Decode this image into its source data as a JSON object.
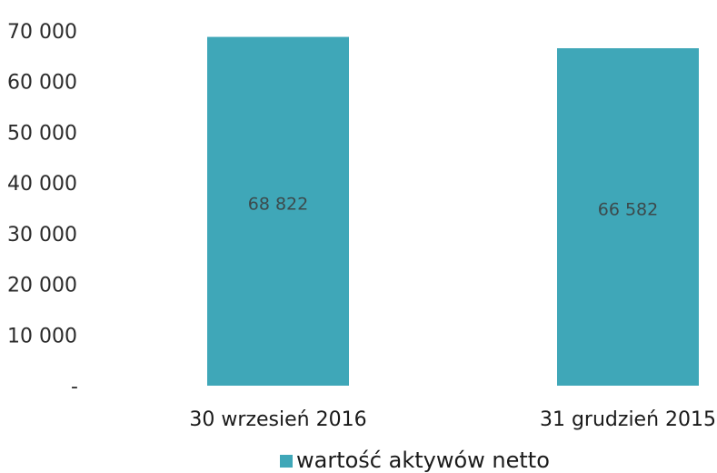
{
  "chart_data": {
    "type": "bar",
    "categories": [
      "30 wrzesień 2016",
      "31 grudzień 2015"
    ],
    "series": [
      {
        "name": "wartość aktywów netto",
        "values": [
          68822,
          66582
        ],
        "value_labels": [
          "68 822",
          "66 582"
        ]
      }
    ],
    "ylim": [
      0,
      70000
    ],
    "yticks": [
      0,
      10000,
      20000,
      30000,
      40000,
      50000,
      60000,
      70000
    ],
    "ytick_labels": [
      "-",
      "10 000",
      "20 000",
      "30 000",
      "40 000",
      "50 000",
      "60 000",
      "70 000"
    ],
    "grid": false,
    "legend_position": "bottom",
    "bar_color": "#3fa7b8"
  }
}
